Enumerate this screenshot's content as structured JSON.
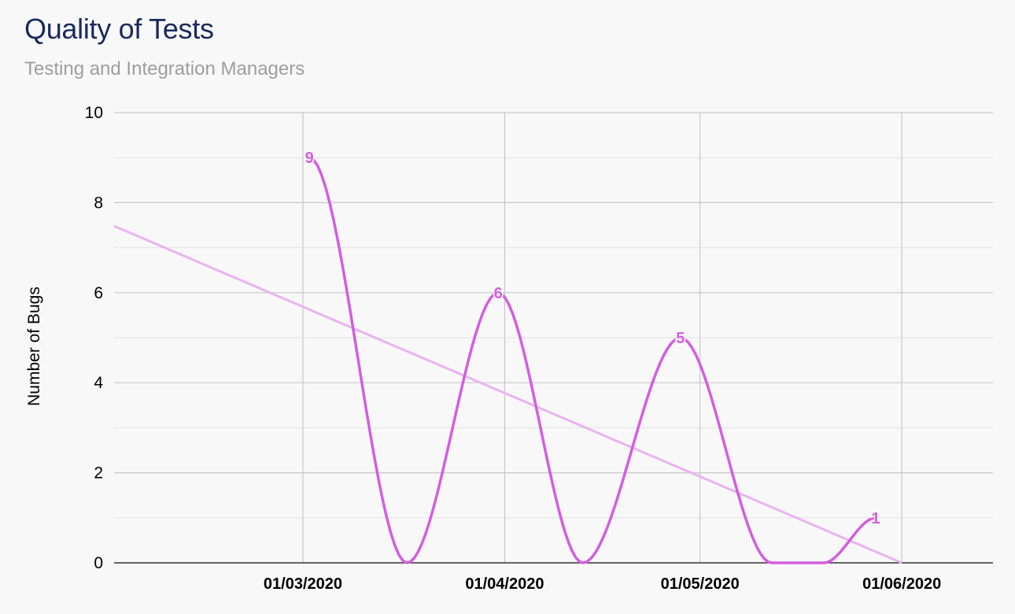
{
  "title": "Quality of Tests",
  "subtitle": "Testing and Integration Managers",
  "colors": {
    "series": "#d35ee0",
    "trend": "#e8b4ef",
    "grid_major": "#c8c8c8",
    "grid_minor": "#e4e4e4",
    "title": "#1a2a5c",
    "subtitle": "#9e9e9e"
  },
  "chart_data": {
    "type": "line",
    "title": "Quality of Tests",
    "subtitle": "Testing and Integration Managers",
    "xlabel": "",
    "ylabel": "Number of Bugs",
    "ylim": [
      0,
      10
    ],
    "yticks": [
      0,
      2,
      4,
      6,
      8,
      10
    ],
    "xlim": [
      "2020-02-01",
      "2020-06-15"
    ],
    "xticks": [
      "2020-03-01",
      "2020-04-01",
      "2020-05-01",
      "2020-06-01"
    ],
    "xtick_labels": [
      "01/03/2020",
      "01/04/2020",
      "01/05/2020",
      "01/06/2020"
    ],
    "grid": true,
    "legend": "none",
    "series": [
      {
        "x": [
          "2020-03-02",
          "2020-03-17",
          "2020-03-31",
          "2020-04-13",
          "2020-04-28",
          "2020-05-12",
          "2020-05-20",
          "2020-05-28"
        ],
        "y": [
          9,
          0,
          6,
          0,
          5,
          0,
          0,
          1
        ],
        "data_labels": [
          {
            "x": "2020-03-02",
            "y": 9,
            "text": "9"
          },
          {
            "x": "2020-03-31",
            "y": 6,
            "text": "6"
          },
          {
            "x": "2020-04-28",
            "y": 5,
            "text": "5"
          },
          {
            "x": "2020-05-28",
            "y": 1,
            "text": "1"
          }
        ]
      }
    ],
    "trendline": {
      "type": "linear",
      "points": [
        {
          "x": "2020-02-01",
          "y": 7.48
        },
        {
          "x": "2020-06-01",
          "y": 0
        }
      ]
    }
  }
}
